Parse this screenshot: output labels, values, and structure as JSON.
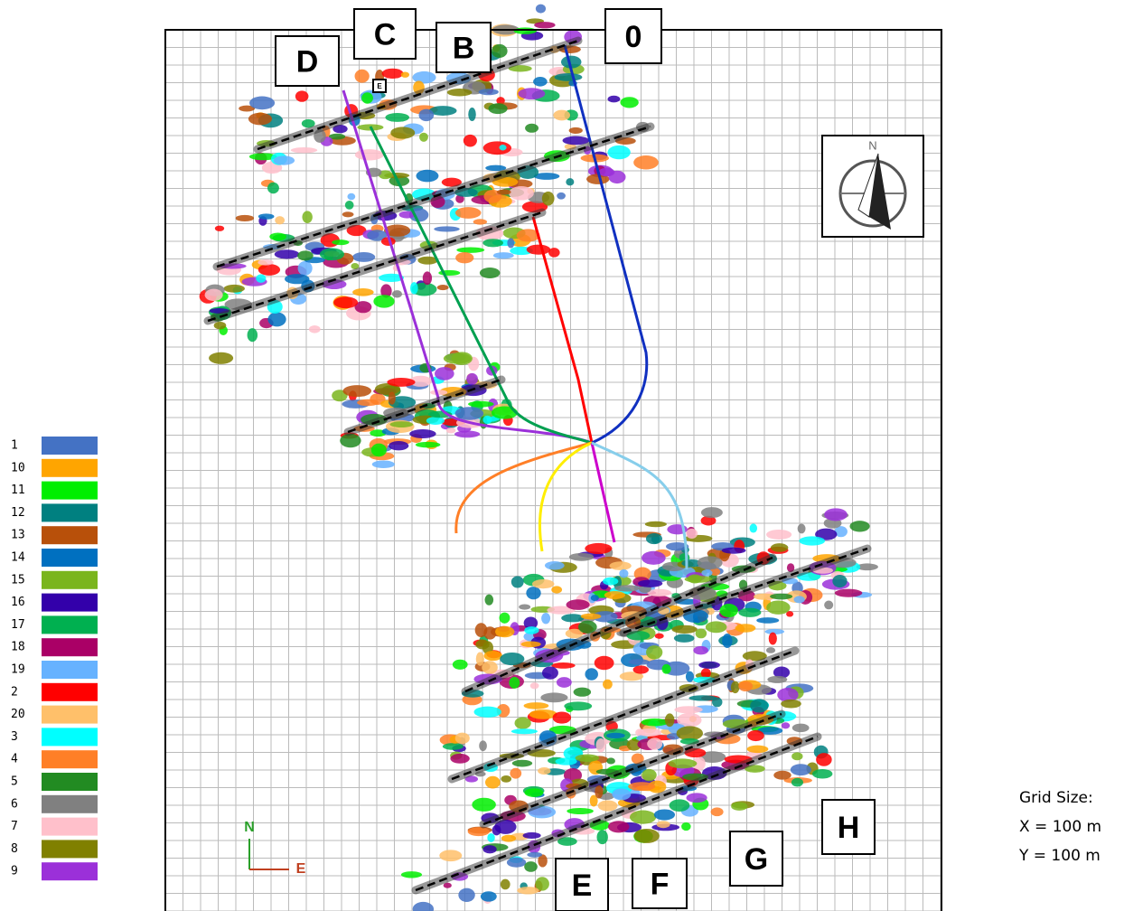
{
  "legend": [
    {
      "label": "1",
      "color": "#4472c4"
    },
    {
      "label": "10",
      "color": "#ffa500"
    },
    {
      "label": "11",
      "color": "#00ee00"
    },
    {
      "label": "12",
      "color": "#008080"
    },
    {
      "label": "13",
      "color": "#b8500a"
    },
    {
      "label": "14",
      "color": "#0070c0"
    },
    {
      "label": "15",
      "color": "#7ab51d"
    },
    {
      "label": "16",
      "color": "#3300aa"
    },
    {
      "label": "17",
      "color": "#00b050"
    },
    {
      "label": "18",
      "color": "#aa0066"
    },
    {
      "label": "19",
      "color": "#66b2ff"
    },
    {
      "label": "2",
      "color": "#ff0000"
    },
    {
      "label": "20",
      "color": "#ffc06a"
    },
    {
      "label": "3",
      "color": "#00ffff"
    },
    {
      "label": "4",
      "color": "#ff7f27"
    },
    {
      "label": "5",
      "color": "#228b22"
    },
    {
      "label": "6",
      "color": "#808080"
    },
    {
      "label": "7",
      "color": "#ffc0cb"
    },
    {
      "label": "8",
      "color": "#808000"
    },
    {
      "label": "9",
      "color": "#9b30d9"
    }
  ],
  "well_labels": [
    "D",
    "C",
    "B",
    "0",
    "E",
    "F",
    "G",
    "H"
  ],
  "small_label": "E",
  "compass_label": "N",
  "axes": {
    "north": "N",
    "east": "E"
  },
  "grid_size": {
    "title": "Grid Size:",
    "x": "X = 100 m",
    "y": "Y = 100 m"
  }
}
